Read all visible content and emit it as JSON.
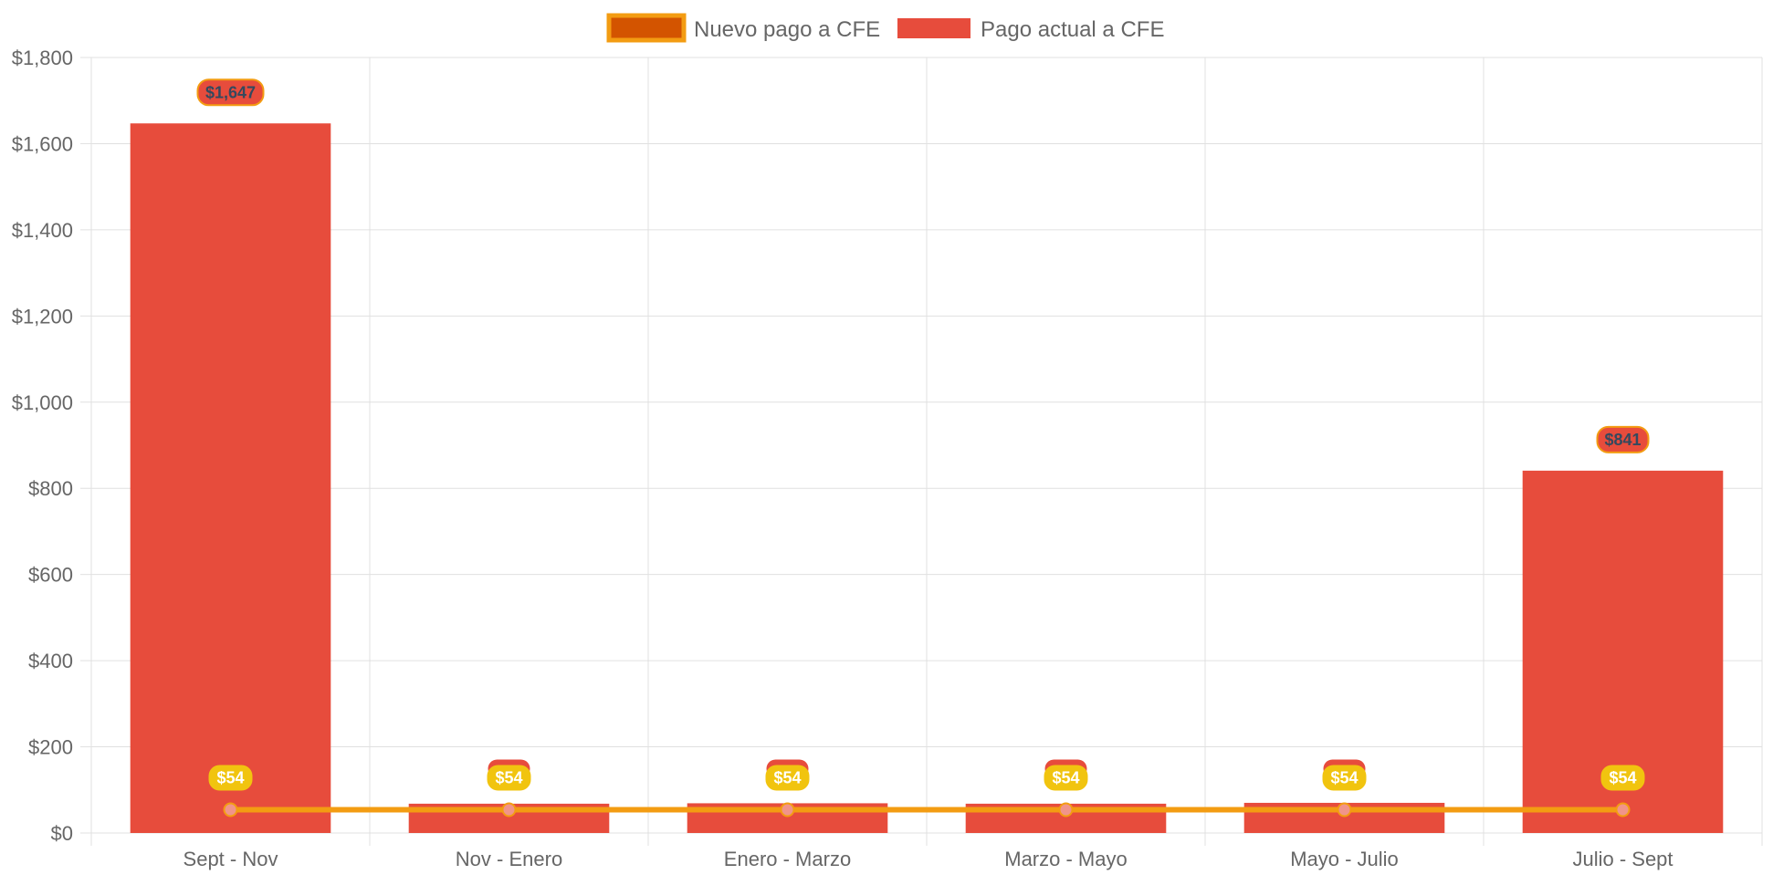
{
  "chart_data": {
    "type": "bar",
    "categories": [
      "Sept - Nov",
      "Nov - Enero",
      "Enero - Marzo",
      "Marzo - Mayo",
      "Mayo - Julio",
      "Julio - Sept"
    ],
    "series": [
      {
        "name": "Nuevo pago a CFE",
        "type": "line",
        "values": [
          54,
          54,
          54,
          54,
          54,
          54
        ],
        "labels": [
          "$54",
          "$54",
          "$54",
          "$54",
          "$54",
          "$54"
        ],
        "color": "#f39c12",
        "swatch_fill": "#d35400",
        "point_color": "#f1948a",
        "label_bg": "#f1c40f"
      },
      {
        "name": "Pago actual a CFE",
        "type": "bar",
        "values": [
          1647,
          68,
          69,
          68,
          70,
          841
        ],
        "labels": [
          "$1,647",
          "",
          "",
          "",
          "",
          "$841"
        ],
        "color": "#e74c3c",
        "label_text_color": "#34495e",
        "label_border": "#f39c12"
      }
    ],
    "ylim": [
      0,
      1800
    ],
    "yticks": [
      "$0",
      "$200",
      "$400",
      "$600",
      "$800",
      "$1,000",
      "$1,200",
      "$1,400",
      "$1,600",
      "$1,800"
    ],
    "grid": true,
    "legend_position": "top-center",
    "colors": {
      "grid": "#e0e0e0",
      "tick_text": "#666666"
    }
  }
}
